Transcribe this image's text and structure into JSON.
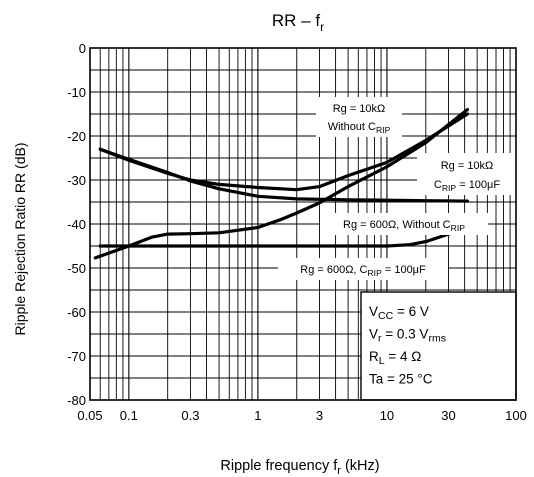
{
  "chart_data": {
    "type": "line",
    "title": {
      "main": "RR – f",
      "sub": "r"
    },
    "xlabel": {
      "main": "Ripple frequency   f",
      "sub": "r",
      "unit": "(kHz)"
    },
    "ylabel": "Ripple Rejection Ratio   RR    (dB)",
    "x_scale": "log",
    "xlim": [
      0.05,
      100
    ],
    "ylim": [
      -80,
      0
    ],
    "grid": true,
    "x_ticks": [
      {
        "value": 0.05,
        "label": "0.05"
      },
      {
        "value": 0.1,
        "label": "0.1"
      },
      {
        "value": 0.3,
        "label": "0.3"
      },
      {
        "value": 1,
        "label": "1"
      },
      {
        "value": 3,
        "label": "3"
      },
      {
        "value": 10,
        "label": "10"
      },
      {
        "value": 30,
        "label": "30"
      },
      {
        "value": 100,
        "label": "100"
      }
    ],
    "y_ticks": [
      0,
      -10,
      -20,
      -30,
      -40,
      -50,
      -60,
      -70,
      -80
    ],
    "series": [
      {
        "points": [
          [
            0.06,
            -23
          ],
          [
            0.1,
            -25.5
          ],
          [
            0.2,
            -28.5
          ],
          [
            0.3,
            -30
          ],
          [
            0.5,
            -31
          ],
          [
            1,
            -31.7
          ],
          [
            2,
            -32.2
          ],
          [
            3,
            -31.5
          ],
          [
            5,
            -29
          ],
          [
            10,
            -26
          ],
          [
            20,
            -21
          ],
          [
            42,
            -15
          ]
        ]
      },
      {
        "points": [
          [
            0.06,
            -23
          ],
          [
            0.1,
            -25.3
          ],
          [
            0.2,
            -28.3
          ],
          [
            0.3,
            -30.2
          ],
          [
            0.5,
            -32
          ],
          [
            1,
            -33.7
          ],
          [
            2,
            -34.3
          ],
          [
            5,
            -34.5
          ],
          [
            10,
            -34.6
          ],
          [
            20,
            -34.7
          ],
          [
            42,
            -34.8
          ]
        ]
      },
      {
        "points": [
          [
            0.055,
            -47.7
          ],
          [
            0.1,
            -45
          ],
          [
            0.15,
            -43
          ],
          [
            0.2,
            -42.3
          ],
          [
            0.3,
            -42.2
          ],
          [
            0.5,
            -42
          ],
          [
            1,
            -40.8
          ],
          [
            1.5,
            -39
          ],
          [
            2,
            -37.5
          ],
          [
            3,
            -35.2
          ],
          [
            5,
            -31.5
          ],
          [
            10,
            -27
          ],
          [
            20,
            -21.5
          ],
          [
            42,
            -14
          ]
        ]
      },
      {
        "points": [
          [
            0.06,
            -45
          ],
          [
            0.1,
            -45
          ],
          [
            0.3,
            -45
          ],
          [
            1,
            -45
          ],
          [
            3,
            -45
          ],
          [
            10,
            -45
          ],
          [
            15,
            -44.7
          ],
          [
            20,
            -44
          ],
          [
            30,
            -42.3
          ],
          [
            42,
            -41
          ]
        ]
      }
    ],
    "annotations": [
      {
        "lines": [
          [
            {
              "t": "Rg = 10kΩ"
            }
          ],
          [
            {
              "t": "Without C"
            },
            {
              "t": "RIP",
              "sub": true
            }
          ]
        ]
      },
      {
        "lines": [
          [
            {
              "t": "Rg = 10kΩ"
            }
          ],
          [
            {
              "t": "C"
            },
            {
              "t": "RIP",
              "sub": true
            },
            {
              "t": " = 100μF"
            }
          ]
        ]
      },
      {
        "lines": [
          [
            {
              "t": "Rg = 600Ω, Without C"
            },
            {
              "t": "RIP",
              "sub": true
            }
          ]
        ]
      },
      {
        "lines": [
          [
            {
              "t": "Rg = 600Ω, C"
            },
            {
              "t": "RIP",
              "sub": true
            },
            {
              "t": " = 100μF"
            }
          ]
        ]
      }
    ],
    "conditions": [
      [
        {
          "t": "V"
        },
        {
          "t": "CC",
          "sub": true
        },
        {
          "t": " = 6 V"
        }
      ],
      [
        {
          "t": "V"
        },
        {
          "t": "r",
          "sub": true
        },
        {
          "t": " = 0.3 V"
        },
        {
          "t": "rms",
          "sub": true
        }
      ],
      [
        {
          "t": "R"
        },
        {
          "t": "L",
          "sub": true
        },
        {
          "t": " = 4 Ω"
        }
      ],
      [
        {
          "t": "Ta = 25 °C"
        }
      ]
    ]
  }
}
